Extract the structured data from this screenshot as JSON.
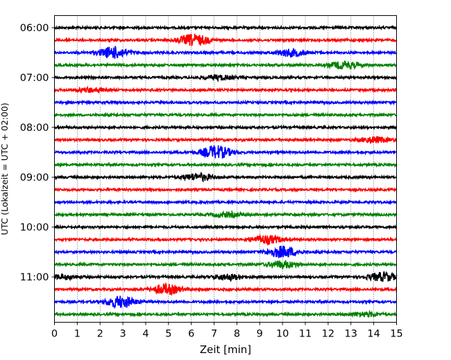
{
  "chart_data": {
    "type": "line",
    "title": "",
    "xlabel": "Zeit  [min]",
    "ylabel": "UTC (Lokalzeit = UTC + 02:00)",
    "xlim": [
      0,
      15
    ],
    "x_ticks": [
      "0",
      "1",
      "2",
      "3",
      "4",
      "5",
      "6",
      "7",
      "8",
      "9",
      "10",
      "11",
      "12",
      "13",
      "14",
      "15"
    ],
    "y_ticks": [
      "06:00",
      "07:00",
      "08:00",
      "09:00",
      "10:00",
      "11:00"
    ],
    "grid": "vertical dotted lines at each minute",
    "legend": "none",
    "trace_colors": [
      "#000000",
      "#ff0000",
      "#0000ff",
      "#008000"
    ],
    "traces": [
      {
        "start": "06:00",
        "events": []
      },
      {
        "start": "06:15",
        "events": [
          {
            "t": 6.1,
            "amp": 8
          }
        ]
      },
      {
        "start": "06:30",
        "events": [
          {
            "t": 2.6,
            "amp": 8
          },
          {
            "t": 10.4,
            "amp": 5
          }
        ]
      },
      {
        "start": "06:45",
        "events": [
          {
            "t": 12.7,
            "amp": 5
          }
        ]
      },
      {
        "start": "07:00",
        "events": [
          {
            "t": 7.2,
            "amp": 3
          }
        ]
      },
      {
        "start": "07:15",
        "events": [
          {
            "t": 1.6,
            "amp": 3
          }
        ]
      },
      {
        "start": "07:30",
        "events": []
      },
      {
        "start": "07:45",
        "events": []
      },
      {
        "start": "08:00",
        "events": []
      },
      {
        "start": "08:15",
        "events": [
          {
            "t": 14.0,
            "amp": 4
          }
        ]
      },
      {
        "start": "08:30",
        "events": [
          {
            "t": 7.1,
            "amp": 9
          }
        ]
      },
      {
        "start": "08:45",
        "events": []
      },
      {
        "start": "09:00",
        "events": [
          {
            "t": 6.3,
            "amp": 5
          }
        ]
      },
      {
        "start": "09:15",
        "events": []
      },
      {
        "start": "09:30",
        "events": []
      },
      {
        "start": "09:45",
        "events": [
          {
            "t": 7.6,
            "amp": 3
          }
        ]
      },
      {
        "start": "10:00",
        "events": []
      },
      {
        "start": "10:15",
        "events": [
          {
            "t": 9.3,
            "amp": 6
          }
        ]
      },
      {
        "start": "10:30",
        "events": [
          {
            "t": 10.0,
            "amp": 8
          }
        ]
      },
      {
        "start": "10:45",
        "events": [
          {
            "t": 10.0,
            "amp": 5
          }
        ]
      },
      {
        "start": "11:00",
        "events": [
          {
            "t": 7.6,
            "amp": 4
          },
          {
            "t": 14.4,
            "amp": 6
          },
          {
            "t": 0.4,
            "amp": 3
          }
        ]
      },
      {
        "start": "11:15",
        "events": [
          {
            "t": 4.9,
            "amp": 7
          }
        ]
      },
      {
        "start": "11:30",
        "events": [
          {
            "t": 2.9,
            "amp": 8
          }
        ]
      },
      {
        "start": "11:45",
        "events": [
          {
            "t": 13.6,
            "amp": 3
          }
        ]
      }
    ]
  }
}
